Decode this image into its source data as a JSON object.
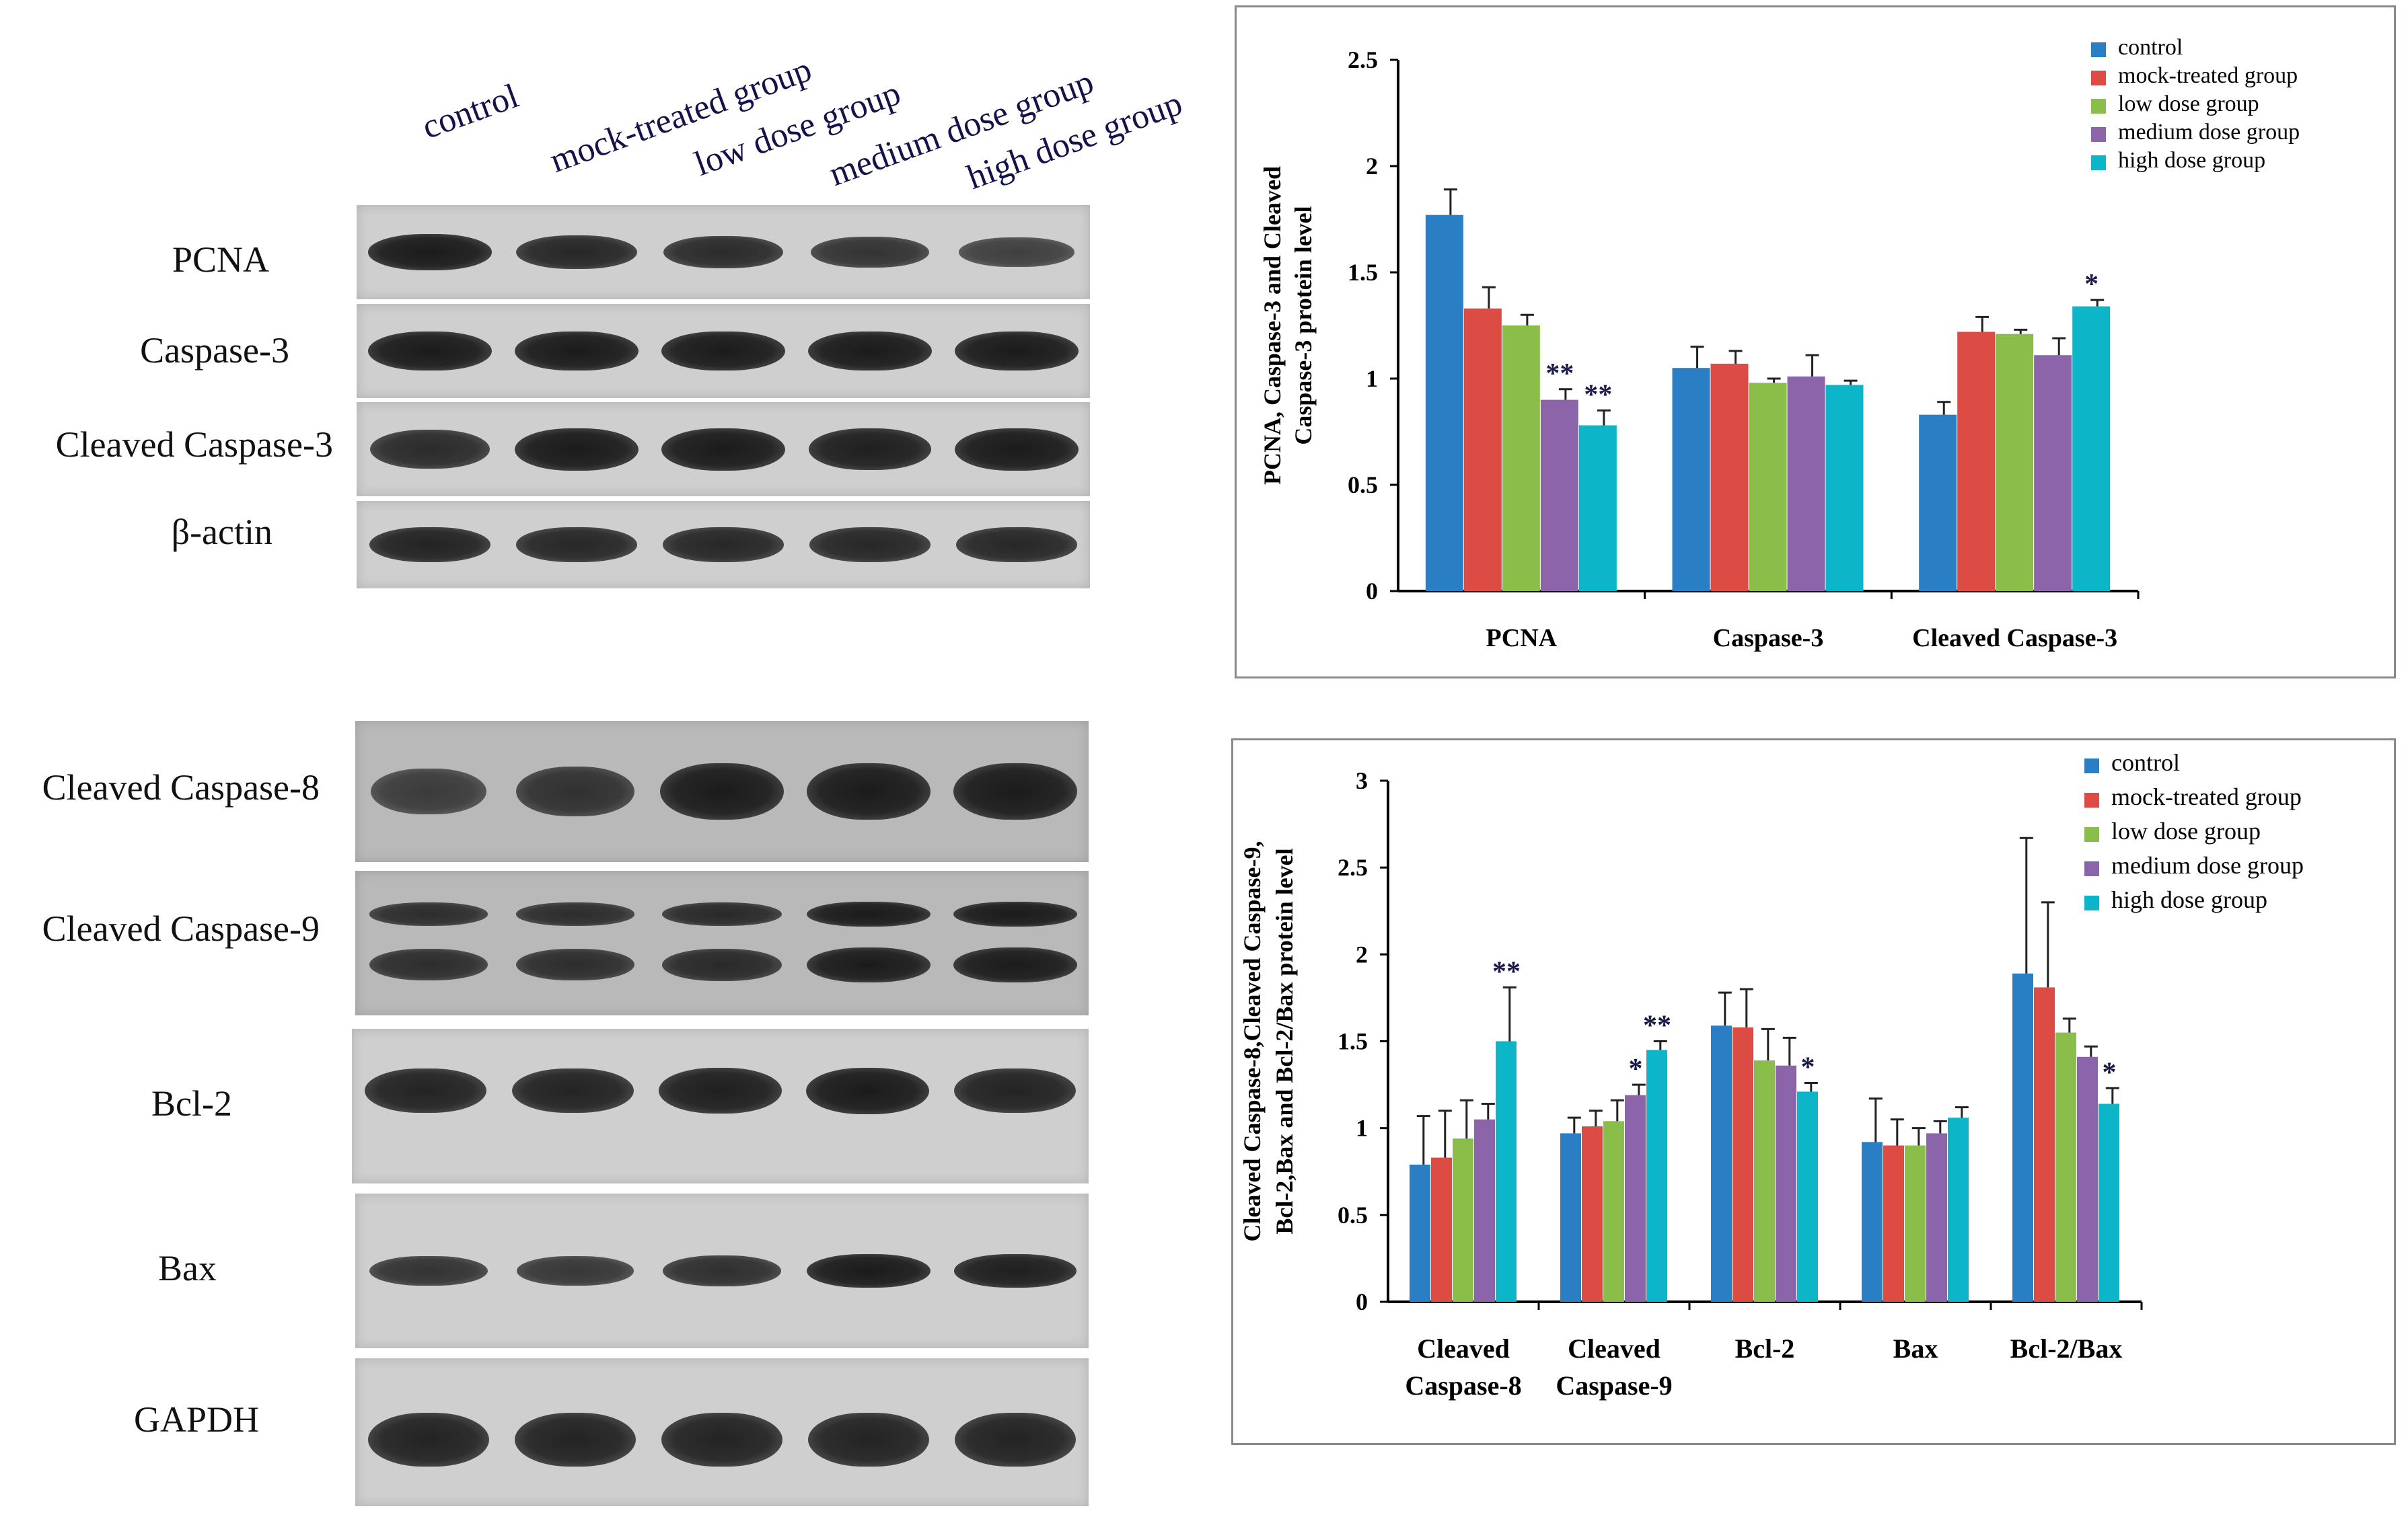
{
  "blot_top": {
    "lanes": [
      "control",
      "mock-treated group",
      "low dose group",
      "medium dose group",
      "high  dose group"
    ],
    "rows": [
      {
        "label": "PCNA",
        "intensity": [
          1.0,
          0.85,
          0.8,
          0.7,
          0.55
        ]
      },
      {
        "label": "Caspase-3",
        "intensity": [
          1.0,
          1.0,
          1.0,
          1.0,
          1.0
        ]
      },
      {
        "label": "Cleaved Caspase-3",
        "intensity": [
          0.8,
          1.0,
          1.0,
          0.95,
          1.0
        ]
      },
      {
        "label": "β-actin",
        "intensity": [
          0.9,
          0.85,
          0.85,
          0.85,
          0.85
        ]
      }
    ]
  },
  "blot_bottom": {
    "rows": [
      {
        "label": "Cleaved Caspase-8",
        "intensity": [
          0.55,
          0.7,
          1.0,
          1.0,
          1.0
        ]
      },
      {
        "label": "Cleaved Caspase-9",
        "intensity": [
          0.75,
          0.75,
          0.8,
          1.0,
          1.0
        ]
      },
      {
        "label": "Bcl-2",
        "intensity": [
          0.9,
          0.9,
          0.95,
          1.0,
          0.9
        ]
      },
      {
        "label": "Bax",
        "intensity": [
          0.7,
          0.65,
          0.75,
          1.0,
          0.95
        ]
      },
      {
        "label": "GAPDH",
        "intensity": [
          0.9,
          0.9,
          0.9,
          0.9,
          0.9
        ]
      }
    ]
  },
  "colors": {
    "control": "#2a7ec3",
    "mock-treated group": "#dc4c44",
    "low dose group": "#8bbd4b",
    "medium dose group": "#8c64aa",
    "high dose group": "#0db5c9"
  },
  "chart_data": [
    {
      "type": "bar",
      "ylabel_lines": [
        "PCNA, Caspase-3 and Cleaved",
        "Caspase-3 protein level"
      ],
      "ylim": [
        0,
        2.5
      ],
      "yticks": [
        "0",
        "0.5",
        "1",
        "1.5",
        "2",
        "2.5"
      ],
      "categories": [
        [
          "PCNA"
        ],
        [
          "Caspase-3"
        ],
        [
          "Cleaved Caspase-3"
        ]
      ],
      "series": [
        {
          "name": "control",
          "values": [
            1.77,
            1.05,
            0.83
          ],
          "errors": [
            0.12,
            0.1,
            0.06
          ]
        },
        {
          "name": "mock-treated group",
          "values": [
            1.33,
            1.07,
            1.22
          ],
          "errors": [
            0.1,
            0.06,
            0.07
          ]
        },
        {
          "name": "low dose group",
          "values": [
            1.25,
            0.98,
            1.21
          ],
          "errors": [
            0.05,
            0.02,
            0.02
          ]
        },
        {
          "name": "medium dose group",
          "values": [
            0.9,
            1.01,
            1.11
          ],
          "errors": [
            0.05,
            0.1,
            0.08
          ]
        },
        {
          "name": "high dose group",
          "values": [
            0.78,
            0.97,
            1.34
          ],
          "errors": [
            0.07,
            0.02,
            0.03
          ]
        }
      ],
      "annotations": [
        {
          "category": 0,
          "series": 3,
          "text": "**"
        },
        {
          "category": 0,
          "series": 4,
          "text": "**"
        },
        {
          "category": 2,
          "series": 4,
          "text": "*"
        }
      ],
      "legend": "top-right"
    },
    {
      "type": "bar",
      "ylabel_lines": [
        "Cleaved Caspase-8,Cleaved Caspase-9,",
        "Bcl-2,Bax and Bcl-2/Bax protein level"
      ],
      "ylim": [
        0,
        3
      ],
      "yticks": [
        "0",
        "0.5",
        "1",
        "1.5",
        "2",
        "2.5",
        "3"
      ],
      "categories": [
        [
          "Cleaved",
          "Caspase-8"
        ],
        [
          "Cleaved",
          "Caspase-9"
        ],
        [
          "Bcl-2"
        ],
        [
          "Bax"
        ],
        [
          "Bcl-2/Bax"
        ]
      ],
      "series": [
        {
          "name": "control",
          "values": [
            0.79,
            0.97,
            1.59,
            0.92,
            1.89
          ],
          "errors": [
            0.28,
            0.09,
            0.19,
            0.25,
            0.78
          ]
        },
        {
          "name": "mock-treated group",
          "values": [
            0.83,
            1.01,
            1.58,
            0.9,
            1.81
          ],
          "errors": [
            0.27,
            0.09,
            0.22,
            0.15,
            0.49
          ]
        },
        {
          "name": "low dose group",
          "values": [
            0.94,
            1.04,
            1.39,
            0.9,
            1.55
          ],
          "errors": [
            0.22,
            0.12,
            0.18,
            0.1,
            0.08
          ]
        },
        {
          "name": "medium dose group",
          "values": [
            1.05,
            1.19,
            1.36,
            0.97,
            1.41
          ],
          "errors": [
            0.09,
            0.06,
            0.16,
            0.07,
            0.06
          ]
        },
        {
          "name": "high dose group",
          "values": [
            1.5,
            1.45,
            1.21,
            1.06,
            1.14
          ],
          "errors": [
            0.31,
            0.05,
            0.05,
            0.06,
            0.09
          ]
        }
      ],
      "annotations": [
        {
          "category": 0,
          "series": 4,
          "text": "**"
        },
        {
          "category": 1,
          "series": 3,
          "text": "*"
        },
        {
          "category": 1,
          "series": 4,
          "text": "**"
        },
        {
          "category": 2,
          "series": 4,
          "text": "*"
        },
        {
          "category": 4,
          "series": 4,
          "text": "*"
        }
      ],
      "legend": "top-right"
    }
  ]
}
